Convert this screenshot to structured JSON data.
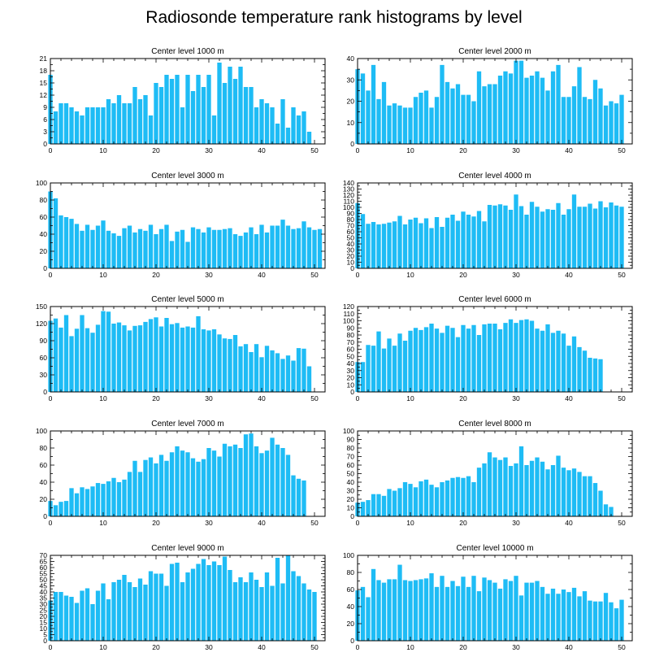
{
  "figure": {
    "title": "Radiosonde temperature rank histograms by level",
    "colors": {
      "bar": "#1ebcf5",
      "axes": "#000000"
    }
  },
  "chart_data": [
    {
      "type": "bar",
      "title": "Center level 1000 m",
      "xlim": [
        0,
        52
      ],
      "ylim": [
        0,
        21
      ],
      "xticks": [
        0,
        10,
        20,
        30,
        40,
        50
      ],
      "yticks": [
        0,
        3,
        6,
        9,
        12,
        15,
        18,
        21
      ],
      "values": [
        17,
        8,
        10,
        10,
        9,
        8,
        7,
        9,
        9,
        9,
        9,
        11,
        10,
        12,
        10,
        10,
        14,
        11,
        12,
        7,
        15,
        14,
        17,
        16,
        17,
        9,
        17,
        13,
        17,
        14,
        17,
        7,
        20,
        15,
        19,
        16,
        19,
        14,
        14,
        9,
        11,
        10,
        9,
        5,
        11,
        4,
        9,
        7,
        8,
        3
      ]
    },
    {
      "type": "bar",
      "title": "Center level 2000 m",
      "xlim": [
        0,
        52
      ],
      "ylim": [
        0,
        40
      ],
      "xticks": [
        0,
        10,
        20,
        30,
        40,
        50
      ],
      "yticks": [
        0,
        10,
        20,
        30,
        40
      ],
      "values": [
        35,
        33,
        25,
        37,
        21,
        29,
        18,
        19,
        18,
        17,
        17,
        22,
        24,
        25,
        17,
        22,
        37,
        29,
        26,
        28,
        23,
        23,
        20,
        34,
        27,
        28,
        28,
        32,
        34,
        33,
        39,
        39,
        31,
        32,
        34,
        31,
        25,
        34,
        37,
        22,
        22,
        27,
        36,
        22,
        21,
        30,
        26,
        18,
        20,
        19,
        23
      ]
    },
    {
      "type": "bar",
      "title": "Center level 3000 m",
      "xlim": [
        0,
        52
      ],
      "ylim": [
        0,
        100
      ],
      "xticks": [
        0,
        10,
        20,
        30,
        40,
        50
      ],
      "yticks": [
        0,
        20,
        40,
        60,
        80,
        100
      ],
      "values": [
        90,
        82,
        62,
        60,
        58,
        52,
        44,
        51,
        45,
        50,
        56,
        44,
        41,
        38,
        47,
        50,
        42,
        46,
        44,
        51,
        40,
        46,
        51,
        32,
        43,
        45,
        31,
        48,
        46,
        42,
        48,
        45,
        45,
        46,
        47,
        40,
        38,
        42,
        48,
        40,
        51,
        42,
        50,
        50,
        57,
        50,
        46,
        47,
        55,
        48,
        45,
        46
      ]
    },
    {
      "type": "bar",
      "title": "Center level 4000 m",
      "xlim": [
        0,
        52
      ],
      "ylim": [
        0,
        140
      ],
      "xticks": [
        0,
        10,
        20,
        30,
        40,
        50
      ],
      "yticks": [
        0,
        10,
        20,
        30,
        40,
        50,
        60,
        70,
        80,
        90,
        100,
        110,
        120,
        130,
        140
      ],
      "values": [
        107,
        89,
        73,
        76,
        72,
        73,
        75,
        77,
        86,
        72,
        80,
        83,
        74,
        82,
        66,
        84,
        68,
        83,
        88,
        78,
        93,
        88,
        85,
        94,
        77,
        104,
        103,
        105,
        103,
        96,
        121,
        102,
        88,
        109,
        101,
        93,
        97,
        96,
        107,
        88,
        97,
        121,
        101,
        101,
        106,
        98,
        110,
        100,
        108,
        103,
        101
      ]
    },
    {
      "type": "bar",
      "title": "Center level 5000 m",
      "xlim": [
        0,
        52
      ],
      "ylim": [
        0,
        150
      ],
      "xticks": [
        0,
        10,
        20,
        30,
        40,
        50
      ],
      "yticks": [
        0,
        30,
        60,
        90,
        120,
        150
      ],
      "values": [
        125,
        129,
        113,
        135,
        98,
        111,
        135,
        112,
        104,
        118,
        142,
        141,
        120,
        122,
        117,
        108,
        116,
        117,
        123,
        128,
        131,
        115,
        130,
        119,
        121,
        113,
        115,
        113,
        133,
        110,
        108,
        110,
        101,
        94,
        93,
        100,
        80,
        84,
        70,
        84,
        61,
        81,
        73,
        68,
        58,
        64,
        55,
        77,
        76,
        45
      ]
    },
    {
      "type": "bar",
      "title": "Center level 6000 m",
      "xlim": [
        0,
        52
      ],
      "ylim": [
        0,
        120
      ],
      "xticks": [
        0,
        10,
        20,
        30,
        40,
        50
      ],
      "yticks": [
        0,
        10,
        20,
        30,
        40,
        50,
        60,
        70,
        80,
        90,
        100,
        110,
        120
      ],
      "values": [
        42,
        42,
        66,
        65,
        85,
        61,
        75,
        65,
        82,
        72,
        86,
        90,
        87,
        91,
        96,
        89,
        83,
        93,
        90,
        77,
        94,
        89,
        94,
        80,
        95,
        96,
        96,
        88,
        97,
        102,
        97,
        101,
        102,
        100,
        89,
        86,
        95,
        83,
        86,
        82,
        65,
        78,
        63,
        58,
        48,
        47,
        46
      ]
    },
    {
      "type": "bar",
      "title": "Center level 7000 m",
      "xlim": [
        0,
        52
      ],
      "ylim": [
        0,
        100
      ],
      "xticks": [
        0,
        10,
        20,
        30,
        40,
        50
      ],
      "yticks": [
        0,
        20,
        40,
        60,
        80,
        100
      ],
      "values": [
        18,
        13,
        17,
        18,
        33,
        27,
        34,
        32,
        35,
        39,
        38,
        41,
        45,
        40,
        43,
        52,
        65,
        52,
        66,
        69,
        62,
        72,
        65,
        75,
        82,
        77,
        75,
        68,
        64,
        67,
        80,
        77,
        70,
        85,
        82,
        84,
        80,
        96,
        97,
        82,
        74,
        77,
        92,
        84,
        80,
        72,
        48,
        44,
        42
      ]
    },
    {
      "type": "bar",
      "title": "Center level 8000 m",
      "xlim": [
        0,
        52
      ],
      "ylim": [
        0,
        100
      ],
      "xticks": [
        0,
        10,
        20,
        30,
        40,
        50
      ],
      "yticks": [
        0,
        10,
        20,
        30,
        40,
        50,
        60,
        70,
        80,
        90,
        100
      ],
      "values": [
        16,
        17,
        19,
        26,
        26,
        24,
        32,
        30,
        33,
        40,
        38,
        34,
        41,
        43,
        37,
        34,
        40,
        42,
        45,
        46,
        45,
        47,
        40,
        57,
        62,
        75,
        69,
        66,
        69,
        59,
        62,
        82,
        60,
        65,
        69,
        64,
        55,
        60,
        71,
        57,
        54,
        56,
        52,
        47,
        47,
        39,
        30,
        14,
        11
      ]
    },
    {
      "type": "bar",
      "title": "Center level 9000 m",
      "xlim": [
        0,
        52
      ],
      "ylim": [
        0,
        70
      ],
      "xticks": [
        0,
        10,
        20,
        30,
        40,
        50
      ],
      "yticks": [
        0,
        5,
        10,
        15,
        20,
        25,
        30,
        35,
        40,
        45,
        50,
        55,
        60,
        65,
        70
      ],
      "values": [
        33,
        40,
        40,
        37,
        36,
        31,
        41,
        43,
        30,
        41,
        47,
        34,
        48,
        50,
        54,
        48,
        44,
        51,
        46,
        57,
        55,
        55,
        45,
        63,
        64,
        48,
        56,
        59,
        63,
        67,
        62,
        65,
        62,
        69,
        58,
        48,
        52,
        48,
        56,
        50,
        44,
        56,
        45,
        68,
        47,
        70,
        57,
        53,
        47,
        42,
        40
      ]
    },
    {
      "type": "bar",
      "title": "Center level 10000 m",
      "xlim": [
        0,
        52
      ],
      "ylim": [
        0,
        100
      ],
      "xticks": [
        0,
        10,
        20,
        30,
        40,
        50
      ],
      "yticks": [
        0,
        20,
        40,
        60,
        80,
        100
      ],
      "values": [
        59,
        63,
        51,
        84,
        71,
        68,
        72,
        72,
        89,
        71,
        70,
        71,
        72,
        73,
        79,
        63,
        76,
        63,
        70,
        64,
        75,
        63,
        76,
        58,
        74,
        71,
        68,
        61,
        72,
        70,
        76,
        53,
        68,
        68,
        70,
        63,
        55,
        61,
        55,
        60,
        57,
        62,
        52,
        58,
        47,
        46,
        46,
        56,
        45,
        38,
        48
      ]
    }
  ]
}
